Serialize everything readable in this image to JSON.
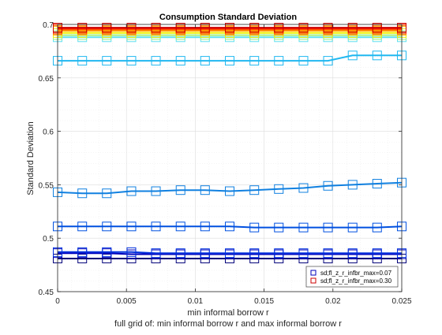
{
  "chart_data": {
    "type": "line",
    "title": "Consumption Standard Deviation",
    "xlabel": "min informal borrow r",
    "xlabel2": "full grid of: min informal borrow r and max informal borrow r",
    "ylabel": "Standard Deviation",
    "xlim": [
      0,
      0.025
    ],
    "ylim": [
      0.45,
      0.7
    ],
    "xticks": [
      0,
      0.005,
      0.01,
      0.015,
      0.02,
      0.025
    ],
    "xtick_labels": [
      "0",
      "0.005",
      "0.01",
      "0.015",
      "0.02",
      "0.025"
    ],
    "yticks": [
      0.45,
      0.5,
      0.55,
      0.6,
      0.65,
      0.7
    ],
    "ytick_labels": [
      "0.45",
      "0.5",
      "0.55",
      "0.6",
      "0.65",
      "0.7"
    ],
    "grid": true,
    "minor_grid": true,
    "marker": "square",
    "legend": {
      "position": "bottom-right",
      "entries": [
        {
          "label": "sd;fl_z_r_infbr_max=0.07",
          "color": "#0000bb"
        },
        {
          "label": "sd;fl_z_r_infbr_max=0.30",
          "color": "#cc0000"
        }
      ]
    },
    "x": [
      0,
      0.00179,
      0.00357,
      0.00536,
      0.00714,
      0.00893,
      0.01071,
      0.0125,
      0.01429,
      0.01607,
      0.01786,
      0.01964,
      0.02143,
      0.02321,
      0.025
    ],
    "series": [
      {
        "color": "#00007a",
        "values": [
          0.481,
          0.481,
          0.481,
          0.481,
          0.481,
          0.481,
          0.481,
          0.481,
          0.481,
          0.481,
          0.481,
          0.481,
          0.481,
          0.481,
          0.481
        ]
      },
      {
        "color": "#0000bb",
        "values": [
          0.486,
          0.486,
          0.486,
          0.485,
          0.485,
          0.485,
          0.485,
          0.485,
          0.485,
          0.485,
          0.485,
          0.485,
          0.485,
          0.485,
          0.485
        ]
      },
      {
        "color": "#0030dd",
        "values": [
          0.487,
          0.487,
          0.487,
          0.487,
          0.486,
          0.486,
          0.486,
          0.486,
          0.486,
          0.486,
          0.486,
          0.486,
          0.486,
          0.486,
          0.486
        ]
      },
      {
        "color": "#0050e0",
        "values": [
          0.511,
          0.511,
          0.511,
          0.511,
          0.511,
          0.511,
          0.511,
          0.511,
          0.51,
          0.51,
          0.51,
          0.51,
          0.51,
          0.51,
          0.511
        ]
      },
      {
        "color": "#1080e0",
        "values": [
          0.543,
          0.542,
          0.542,
          0.544,
          0.544,
          0.545,
          0.545,
          0.544,
          0.545,
          0.546,
          0.547,
          0.549,
          0.55,
          0.551,
          0.552
        ]
      },
      {
        "color": "#20b8f0",
        "values": [
          0.666,
          0.666,
          0.666,
          0.666,
          0.666,
          0.666,
          0.666,
          0.666,
          0.666,
          0.666,
          0.666,
          0.666,
          0.671,
          0.671,
          0.671
        ]
      },
      {
        "color": "#60e0f0",
        "values": [
          0.688,
          0.688,
          0.688,
          0.688,
          0.688,
          0.688,
          0.688,
          0.688,
          0.688,
          0.688,
          0.688,
          0.688,
          0.688,
          0.688,
          0.688
        ]
      },
      {
        "color": "#a0f080",
        "values": [
          0.69,
          0.69,
          0.69,
          0.69,
          0.69,
          0.69,
          0.69,
          0.69,
          0.69,
          0.69,
          0.69,
          0.69,
          0.69,
          0.69,
          0.69
        ]
      },
      {
        "color": "#f0f000",
        "values": [
          0.692,
          0.692,
          0.692,
          0.692,
          0.692,
          0.692,
          0.692,
          0.692,
          0.692,
          0.692,
          0.692,
          0.692,
          0.692,
          0.692,
          0.692
        ]
      },
      {
        "color": "#ffb000",
        "values": [
          0.694,
          0.694,
          0.694,
          0.694,
          0.694,
          0.694,
          0.694,
          0.694,
          0.694,
          0.694,
          0.694,
          0.694,
          0.694,
          0.694,
          0.694
        ]
      },
      {
        "color": "#ff7000",
        "values": [
          0.695,
          0.695,
          0.695,
          0.695,
          0.695,
          0.695,
          0.695,
          0.695,
          0.695,
          0.695,
          0.695,
          0.695,
          0.695,
          0.695,
          0.695
        ]
      },
      {
        "color": "#ff2000",
        "values": [
          0.696,
          0.696,
          0.696,
          0.696,
          0.696,
          0.696,
          0.696,
          0.696,
          0.696,
          0.696,
          0.696,
          0.696,
          0.696,
          0.696,
          0.696
        ]
      },
      {
        "color": "#cc0000",
        "values": [
          0.697,
          0.697,
          0.697,
          0.697,
          0.697,
          0.697,
          0.697,
          0.697,
          0.697,
          0.697,
          0.697,
          0.697,
          0.697,
          0.697,
          0.697
        ]
      }
    ]
  }
}
